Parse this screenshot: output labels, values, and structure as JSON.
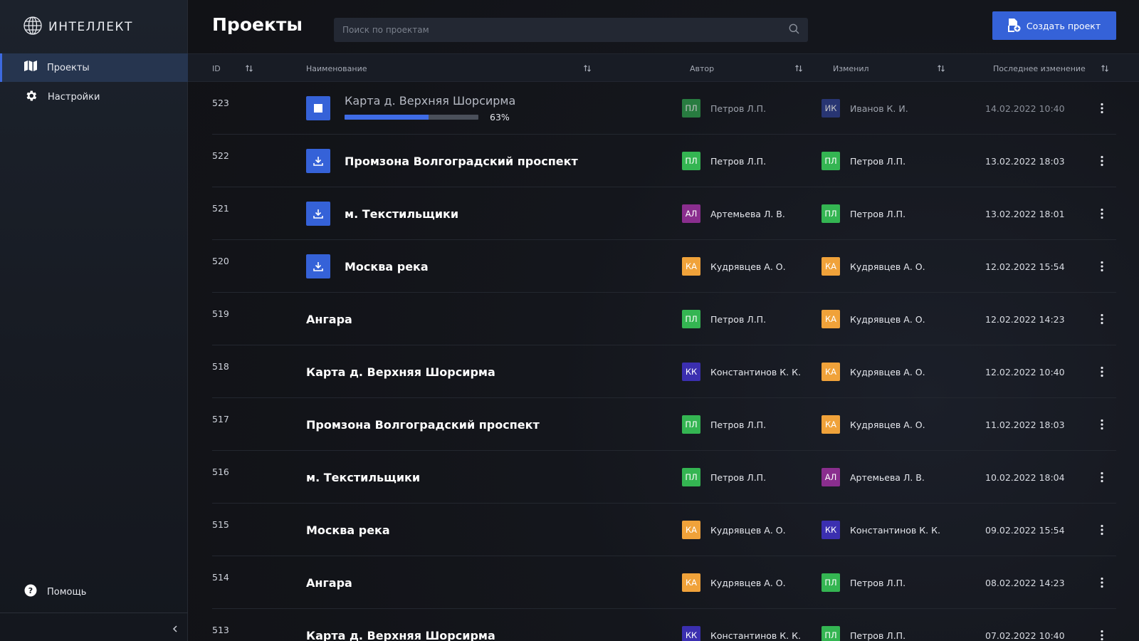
{
  "app": {
    "logo_text": "ИНТЕЛЛЕКТ"
  },
  "sidebar": {
    "items": [
      {
        "label": "Проекты",
        "icon": "map-icon"
      },
      {
        "label": "Настройки",
        "icon": "gear-icon"
      }
    ],
    "help_label": "Помощь"
  },
  "header": {
    "title": "Проекты",
    "search_placeholder": "Поиск по проектам",
    "create_label": "Создать проект"
  },
  "table": {
    "columns": [
      "ID",
      "Наименование",
      "Автор",
      "Изменил",
      "Последнее изменение"
    ],
    "rows": [
      {
        "id": "523",
        "name": "Карта д. Верхняя  Шорсирма",
        "action": "stop",
        "progress": 63,
        "progress_label": "63%",
        "author_initials": "ПЛ",
        "author_name": "Петров Л.П.",
        "author_color": "#2f9e4d",
        "editor_initials": "ИК",
        "editor_name": "Иванов К. И.",
        "editor_color": "#2f3f8f",
        "date": "14.02.2022 10:40"
      },
      {
        "id": "522",
        "name": "Промзона Волгоградский проспект",
        "action": "download",
        "author_initials": "ПЛ",
        "author_name": "Петров Л.П.",
        "author_color": "#34b552",
        "editor_initials": "ПЛ",
        "editor_name": "Петров Л.П.",
        "editor_color": "#34b552",
        "date": "13.02.2022 18:03"
      },
      {
        "id": "521",
        "name": "м. Текстильщики",
        "action": "download",
        "author_initials": "АЛ",
        "author_name": "Артемьева Л. В.",
        "author_color": "#8a2e8e",
        "editor_initials": "ПЛ",
        "editor_name": "Петров Л.П.",
        "editor_color": "#34b552",
        "date": "13.02.2022 18:01"
      },
      {
        "id": "520",
        "name": "Москва река",
        "action": "download",
        "author_initials": "КА",
        "author_name": "Кудрявцев А. О.",
        "author_color": "#f0a23a",
        "editor_initials": "КА",
        "editor_name": "Кудрявцев А. О.",
        "editor_color": "#f0a23a",
        "date": "12.02.2022 15:54"
      },
      {
        "id": "519",
        "name": "Ангара",
        "action": "none",
        "author_initials": "ПЛ",
        "author_name": "Петров Л.П.",
        "author_color": "#34b552",
        "editor_initials": "КА",
        "editor_name": "Кудрявцев А. О.",
        "editor_color": "#f0a23a",
        "date": "12.02.2022 14:23"
      },
      {
        "id": "518",
        "name": "Карта д. Верхняя  Шорсирма",
        "action": "none",
        "author_initials": "КК",
        "author_name": "Константинов К. К.",
        "author_color": "#3b2fb0",
        "editor_initials": "КА",
        "editor_name": "Кудрявцев А. О.",
        "editor_color": "#f0a23a",
        "date": "12.02.2022 10:40"
      },
      {
        "id": "517",
        "name": "Промзона Волгоградский проспект",
        "action": "none",
        "author_initials": "ПЛ",
        "author_name": "Петров Л.П.",
        "author_color": "#34b552",
        "editor_initials": "КА",
        "editor_name": "Кудрявцев А. О.",
        "editor_color": "#f0a23a",
        "date": "11.02.2022 18:03"
      },
      {
        "id": "516",
        "name": "м. Текстильщики",
        "action": "none",
        "author_initials": "ПЛ",
        "author_name": "Петров Л.П.",
        "author_color": "#34b552",
        "editor_initials": "АЛ",
        "editor_name": "Артемьева Л. В.",
        "editor_color": "#8a2e8e",
        "date": "10.02.2022 18:04"
      },
      {
        "id": "515",
        "name": "Москва река",
        "action": "none",
        "author_initials": "КА",
        "author_name": "Кудрявцев А. О.",
        "author_color": "#f0a23a",
        "editor_initials": "КК",
        "editor_name": "Константинов К. К.",
        "editor_color": "#3b2fb0",
        "date": "09.02.2022 15:54"
      },
      {
        "id": "514",
        "name": "Ангара",
        "action": "none",
        "author_initials": "КА",
        "author_name": "Кудрявцев А. О.",
        "author_color": "#f0a23a",
        "editor_initials": "ПЛ",
        "editor_name": "Петров Л.П.",
        "editor_color": "#34b552",
        "date": "08.02.2022 14:23"
      },
      {
        "id": "513",
        "name": "Карта д. Верхняя  Шорсирма",
        "action": "none",
        "author_initials": "КК",
        "author_name": "Константинов К. К.",
        "author_color": "#3b2fb0",
        "editor_initials": "ПЛ",
        "editor_name": "Петров Л.П.",
        "editor_color": "#34b552",
        "date": "07.02.2022 10:40"
      }
    ]
  },
  "colors": {
    "accent": "#3562d8",
    "sidebar_active": "#26354f",
    "progress_fill": "#3f6ce6"
  }
}
